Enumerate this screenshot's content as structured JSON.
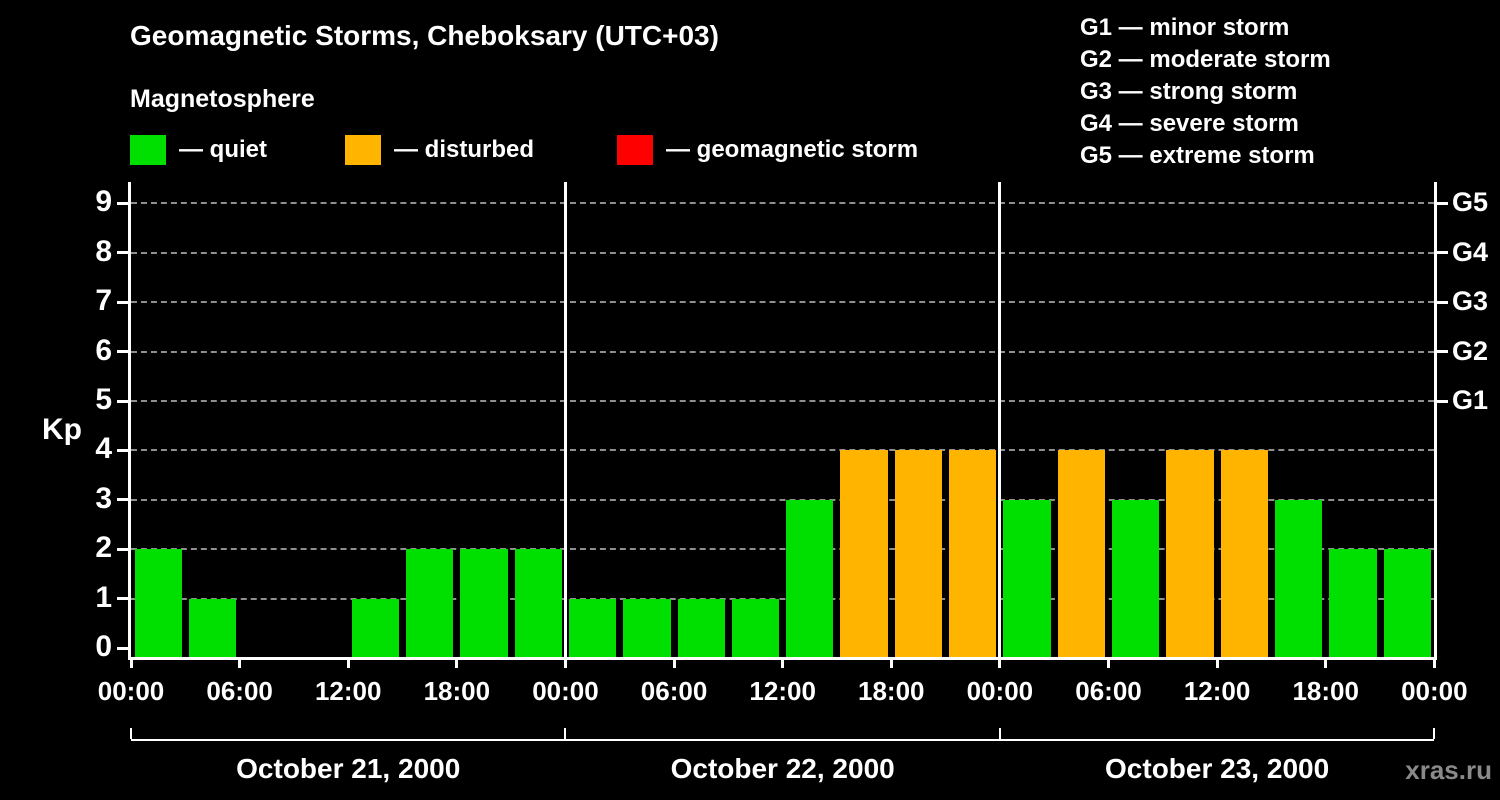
{
  "title": "Geomagnetic Storms, Cheboksary (UTC+03)",
  "subtitle": "Magnetosphere",
  "legend": {
    "items": [
      {
        "label": "— quiet",
        "color": "#00e000"
      },
      {
        "label": "— disturbed",
        "color": "#ffb400"
      },
      {
        "label": "— geomagnetic storm",
        "color": "#ff0000"
      }
    ]
  },
  "storm_scale_legend": [
    "G1 — minor storm",
    "G2 — moderate storm",
    "G3 — strong storm",
    "G4 — severe storm",
    "G5 — extreme storm"
  ],
  "watermark": "xras.ru",
  "chart_data": {
    "type": "bar",
    "title": "Geomagnetic Storms, Cheboksary (UTC+03)",
    "ylabel": "Kp",
    "ylim": [
      0,
      9
    ],
    "y_ticks": [
      0,
      1,
      2,
      3,
      4,
      5,
      6,
      7,
      8,
      9
    ],
    "right_axis": [
      {
        "kp": 5,
        "label": "G1"
      },
      {
        "kp": 6,
        "label": "G2"
      },
      {
        "kp": 7,
        "label": "G3"
      },
      {
        "kp": 8,
        "label": "G4"
      },
      {
        "kp": 9,
        "label": "G5"
      }
    ],
    "x_tick_labels": [
      "00:00",
      "06:00",
      "12:00",
      "18:00",
      "00:00",
      "06:00",
      "12:00",
      "18:00",
      "00:00",
      "06:00",
      "12:00",
      "18:00",
      "00:00"
    ],
    "bar_interval_hours": 3,
    "days": [
      {
        "date": "October 21, 2000",
        "kp_values": [
          2,
          1,
          0,
          0,
          1,
          2,
          2,
          2
        ]
      },
      {
        "date": "October 22, 2000",
        "kp_values": [
          1,
          1,
          1,
          1,
          3,
          4,
          4,
          4
        ]
      },
      {
        "date": "October 23, 2000",
        "kp_values": [
          3,
          4,
          3,
          4,
          4,
          3,
          2,
          2
        ]
      }
    ],
    "series_colors": {
      "quiet": "#00e000",
      "disturbed": "#ffb400",
      "storm": "#ff0000"
    },
    "color_thresholds": {
      "quiet_max": 3,
      "disturbed_max": 4
    },
    "grid": "dashed horizontal",
    "legend_position": "top"
  }
}
